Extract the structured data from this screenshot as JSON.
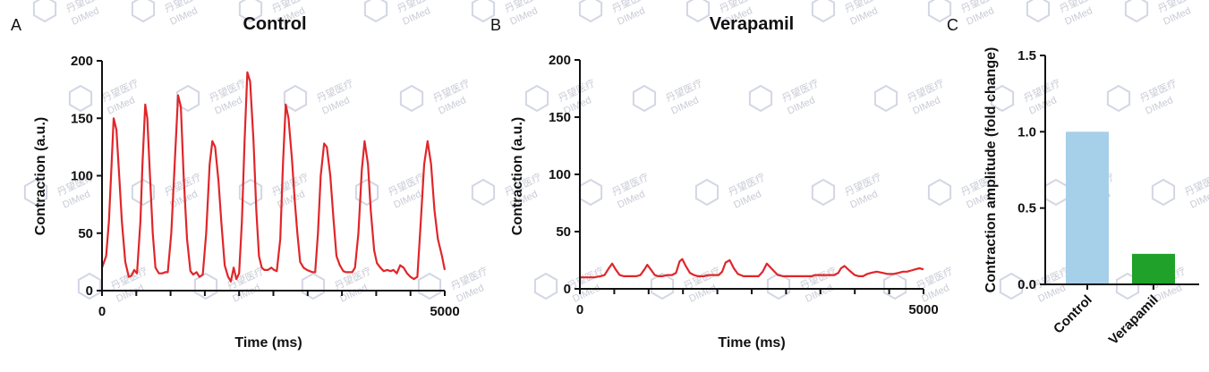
{
  "chart_data": [
    {
      "panel": "A",
      "type": "line",
      "title": "Control",
      "xlabel": "Time (ms)",
      "ylabel": "Contraction (a.u.)",
      "xlim": [
        0,
        5000
      ],
      "ylim": [
        0,
        200
      ],
      "x_ticks": [
        "0",
        "5000"
      ],
      "y_ticks": [
        "0",
        "50",
        "100",
        "150",
        "200"
      ],
      "color": "#e0262a",
      "series": [
        {
          "x": [
            0,
            60,
            100,
            140,
            170,
            210,
            250,
            290,
            340,
            390,
            430,
            470,
            510,
            560,
            590,
            630,
            660,
            700,
            740,
            780,
            830,
            880,
            920,
            960,
            1010,
            1060,
            1110,
            1150,
            1190,
            1240,
            1290,
            1330,
            1380,
            1420,
            1470,
            1520,
            1570,
            1610,
            1650,
            1700,
            1740,
            1790,
            1840,
            1880,
            1920,
            1960,
            2000,
            2040,
            2080,
            2120,
            2160,
            2210,
            2250,
            2290,
            2330,
            2370,
            2420,
            2470,
            2510,
            2550,
            2600,
            2640,
            2680,
            2720,
            2770,
            2810,
            2850,
            2890,
            2940,
            2990,
            3030,
            3070,
            3110,
            3150,
            3190,
            3240,
            3280,
            3330,
            3380,
            3420,
            3470,
            3520,
            3560,
            3610,
            3650,
            3690,
            3740,
            3790,
            3830,
            3880,
            3920,
            3970,
            4010,
            4060,
            4110,
            4160,
            4210,
            4250,
            4300,
            4350,
            4400,
            4450,
            4500,
            4550,
            4600,
            4650,
            4700,
            4750,
            4800,
            4850,
            4900,
            4960,
            5000
          ],
          "y": [
            20,
            30,
            60,
            110,
            150,
            140,
            100,
            60,
            25,
            12,
            13,
            18,
            15,
            60,
            110,
            162,
            150,
            100,
            50,
            20,
            15,
            15,
            16,
            16,
            50,
            110,
            170,
            160,
            100,
            45,
            17,
            14,
            16,
            12,
            14,
            50,
            110,
            130,
            125,
            95,
            60,
            22,
            12,
            8,
            20,
            10,
            15,
            60,
            130,
            190,
            182,
            130,
            70,
            30,
            20,
            18,
            18,
            20,
            18,
            17,
            45,
            110,
            162,
            150,
            115,
            80,
            50,
            25,
            20,
            18,
            17,
            16,
            16,
            50,
            100,
            128,
            125,
            100,
            60,
            30,
            22,
            17,
            16,
            16,
            16,
            20,
            50,
            105,
            130,
            110,
            70,
            35,
            24,
            20,
            17,
            18,
            17,
            18,
            15,
            22,
            20,
            15,
            12,
            10,
            12,
            60,
            110,
            130,
            110,
            70,
            45,
            30,
            18
          ]
        }
      ]
    },
    {
      "panel": "B",
      "type": "line",
      "title": "Verapamil",
      "xlabel": "Time (ms)",
      "ylabel": "Contraction (a.u.)",
      "xlim": [
        0,
        5000
      ],
      "ylim": [
        0,
        200
      ],
      "x_ticks": [
        "0",
        "5000"
      ],
      "y_ticks": [
        "0",
        "50",
        "100",
        "150",
        "200"
      ],
      "color": "#e0262a",
      "series": [
        {
          "x": [
            0,
            100,
            200,
            300,
            360,
            420,
            470,
            520,
            580,
            640,
            700,
            760,
            820,
            880,
            940,
            980,
            1030,
            1090,
            1140,
            1200,
            1270,
            1340,
            1400,
            1450,
            1490,
            1540,
            1600,
            1660,
            1720,
            1800,
            1880,
            1950,
            2020,
            2070,
            2120,
            2180,
            2240,
            2300,
            2380,
            2460,
            2540,
            2600,
            2660,
            2720,
            2800,
            2880,
            2960,
            3040,
            3120,
            3200,
            3260,
            3320,
            3370,
            3420,
            3480,
            3560,
            3640,
            3700,
            3760,
            3800,
            3850,
            3920,
            4000,
            4060,
            4120,
            4180,
            4240,
            4320,
            4400,
            4480,
            4560,
            4640,
            4700,
            4760,
            4820,
            4880,
            4940,
            5000
          ],
          "y": [
            10,
            10,
            10,
            11,
            12,
            18,
            22,
            17,
            12,
            11,
            11,
            11,
            11,
            12,
            17,
            21,
            17,
            12,
            11,
            11,
            12,
            12,
            14,
            24,
            26,
            20,
            14,
            12,
            11,
            11,
            12,
            12,
            12,
            15,
            23,
            25,
            18,
            13,
            11,
            11,
            11,
            11,
            15,
            22,
            17,
            12,
            11,
            11,
            11,
            11,
            11,
            11,
            11,
            12,
            12,
            12,
            12,
            12,
            14,
            18,
            20,
            16,
            12,
            11,
            11,
            13,
            14,
            15,
            14,
            13,
            13,
            14,
            15,
            15,
            16,
            17,
            18,
            17
          ]
        }
      ]
    },
    {
      "panel": "C",
      "type": "bar",
      "categories": [
        "Control",
        "Verapamil"
      ],
      "values": [
        1.0,
        0.2
      ],
      "colors": [
        "#a6cfe9",
        "#1fa12a"
      ],
      "ylabel": "Contraction amplitude (fold change)",
      "ylim": [
        0,
        1.5
      ],
      "y_ticks": [
        "0.0",
        "0.5",
        "1.0",
        "1.5"
      ]
    }
  ],
  "watermark": {
    "text_line1": "丹望医疗",
    "text_line2": "DIMed"
  }
}
